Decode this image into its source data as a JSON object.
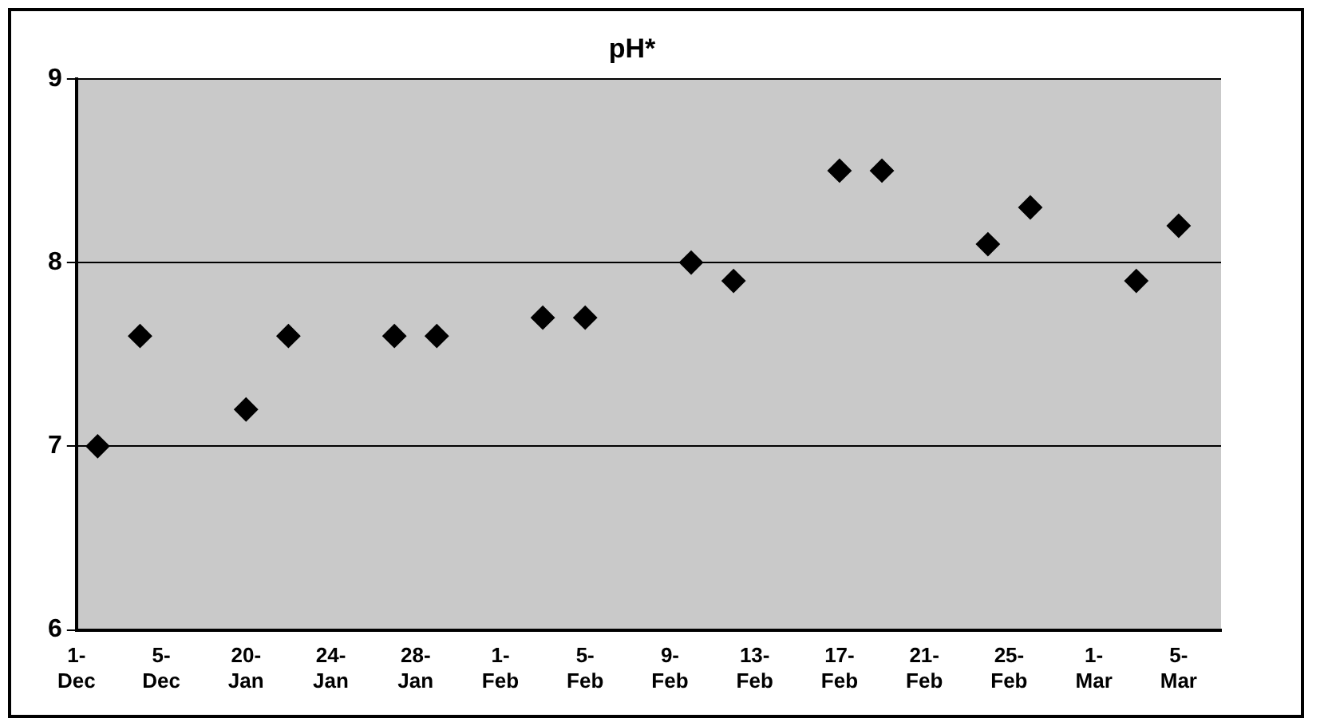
{
  "chart_data": {
    "type": "scatter",
    "title": "pH*",
    "categories": [
      "1-Dec",
      null,
      null,
      null,
      "5-Dec",
      null,
      null,
      null,
      "20-Jan",
      null,
      null,
      null,
      "24-Jan",
      null,
      null,
      null,
      "28-Jan",
      null,
      null,
      null,
      "1-Feb",
      null,
      null,
      null,
      "5-Feb",
      null,
      null,
      null,
      "9-Feb",
      null,
      null,
      null,
      "13-Feb",
      null,
      null,
      null,
      "17-Feb",
      null,
      null,
      null,
      "21-Feb",
      null,
      null,
      null,
      "25-Feb",
      null,
      null,
      null,
      "1-Mar",
      null,
      null,
      null,
      "5-Mar",
      null,
      null
    ],
    "series": [
      {
        "color": "#000000",
        "values": [
          null,
          7.0,
          null,
          7.6,
          null,
          null,
          null,
          null,
          7.2,
          null,
          7.6,
          null,
          null,
          null,
          null,
          7.6,
          null,
          7.6,
          null,
          null,
          null,
          null,
          7.7,
          null,
          7.7,
          null,
          null,
          null,
          null,
          8.0,
          null,
          7.9,
          null,
          null,
          null,
          null,
          8.5,
          null,
          8.5,
          null,
          null,
          null,
          null,
          8.1,
          null,
          8.3,
          null,
          null,
          null,
          null,
          7.9,
          null,
          8.2,
          null,
          null
        ]
      }
    ],
    "ylim": [
      6,
      9
    ],
    "yticks": [
      6,
      7,
      8,
      9
    ],
    "grid": "y",
    "marker": "diamond",
    "legend": false
  }
}
